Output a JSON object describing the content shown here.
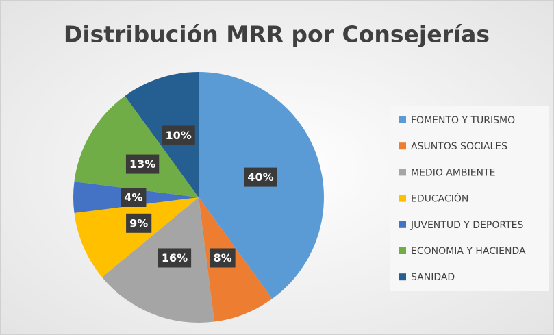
{
  "chart_data": {
    "type": "pie",
    "title": "Distribución MRR por Consejerías",
    "categories": [
      "FOMENTO Y TURISMO",
      "ASUNTOS SOCIALES",
      "MEDIO AMBIENTE",
      "EDUCACIÓN",
      "JUVENTUD Y DEPORTES",
      "ECONOMIA Y HACIENDA",
      "SANIDAD"
    ],
    "values": [
      40,
      8,
      16,
      9,
      4,
      13,
      10
    ],
    "value_labels": [
      "40%",
      "8%",
      "16%",
      "9%",
      "4%",
      "13%",
      "10%"
    ],
    "colors": [
      "#5b9bd5",
      "#ed7d31",
      "#a5a5a5",
      "#ffc000",
      "#4472c4",
      "#70ad47",
      "#255e91"
    ],
    "legend": "right"
  }
}
